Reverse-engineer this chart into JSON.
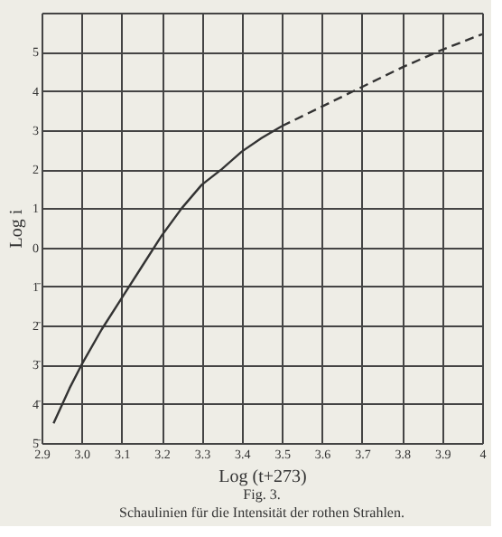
{
  "chart_data": {
    "type": "line",
    "xlabel": "Log (t+273)",
    "ylabel": "Log i",
    "annotations": [
      "Fig. 3.",
      "Schaulinien für die Intensität der rothen Strahlen."
    ],
    "series": [
      {
        "color": "#333333",
        "line_style": "solid",
        "x": [
          2.93,
          2.97,
          3.0,
          3.05,
          3.1,
          3.15,
          3.2,
          3.25,
          3.3,
          3.35,
          3.4,
          3.45,
          3.5
        ],
        "values": [
          -4.5,
          -3.6,
          -3.0,
          -2.1,
          -1.3,
          -0.5,
          0.3,
          1.0,
          1.6,
          2.0,
          2.45,
          2.8,
          3.1
        ]
      },
      {
        "color": "#333333",
        "line_style": "dashed",
        "x": [
          3.5,
          3.6,
          3.7,
          3.8,
          3.9,
          4.0
        ],
        "values": [
          3.1,
          3.6,
          4.1,
          4.6,
          5.05,
          5.45
        ]
      }
    ],
    "xlim": [
      2.9,
      4.0
    ],
    "ylim": [
      -5,
      6
    ],
    "xticks": [
      2.9,
      {
        "value": 3.0,
        "label": "3.0"
      },
      3.1,
      3.2,
      3.3,
      3.4,
      3.5,
      3.6,
      3.7,
      3.8,
      3.9,
      {
        "value": 4.0,
        "label": "4"
      }
    ],
    "yticks": [
      {
        "value": -5,
        "label": "5̄"
      },
      {
        "value": -4,
        "label": "4̄"
      },
      {
        "value": -3,
        "label": "3̄"
      },
      {
        "value": -2,
        "label": "2̄"
      },
      {
        "value": -1,
        "label": "1̄"
      },
      0,
      1,
      2,
      3,
      4,
      5,
      {
        "value": 6,
        "label": null
      }
    ],
    "grid": true,
    "marker": "none"
  }
}
